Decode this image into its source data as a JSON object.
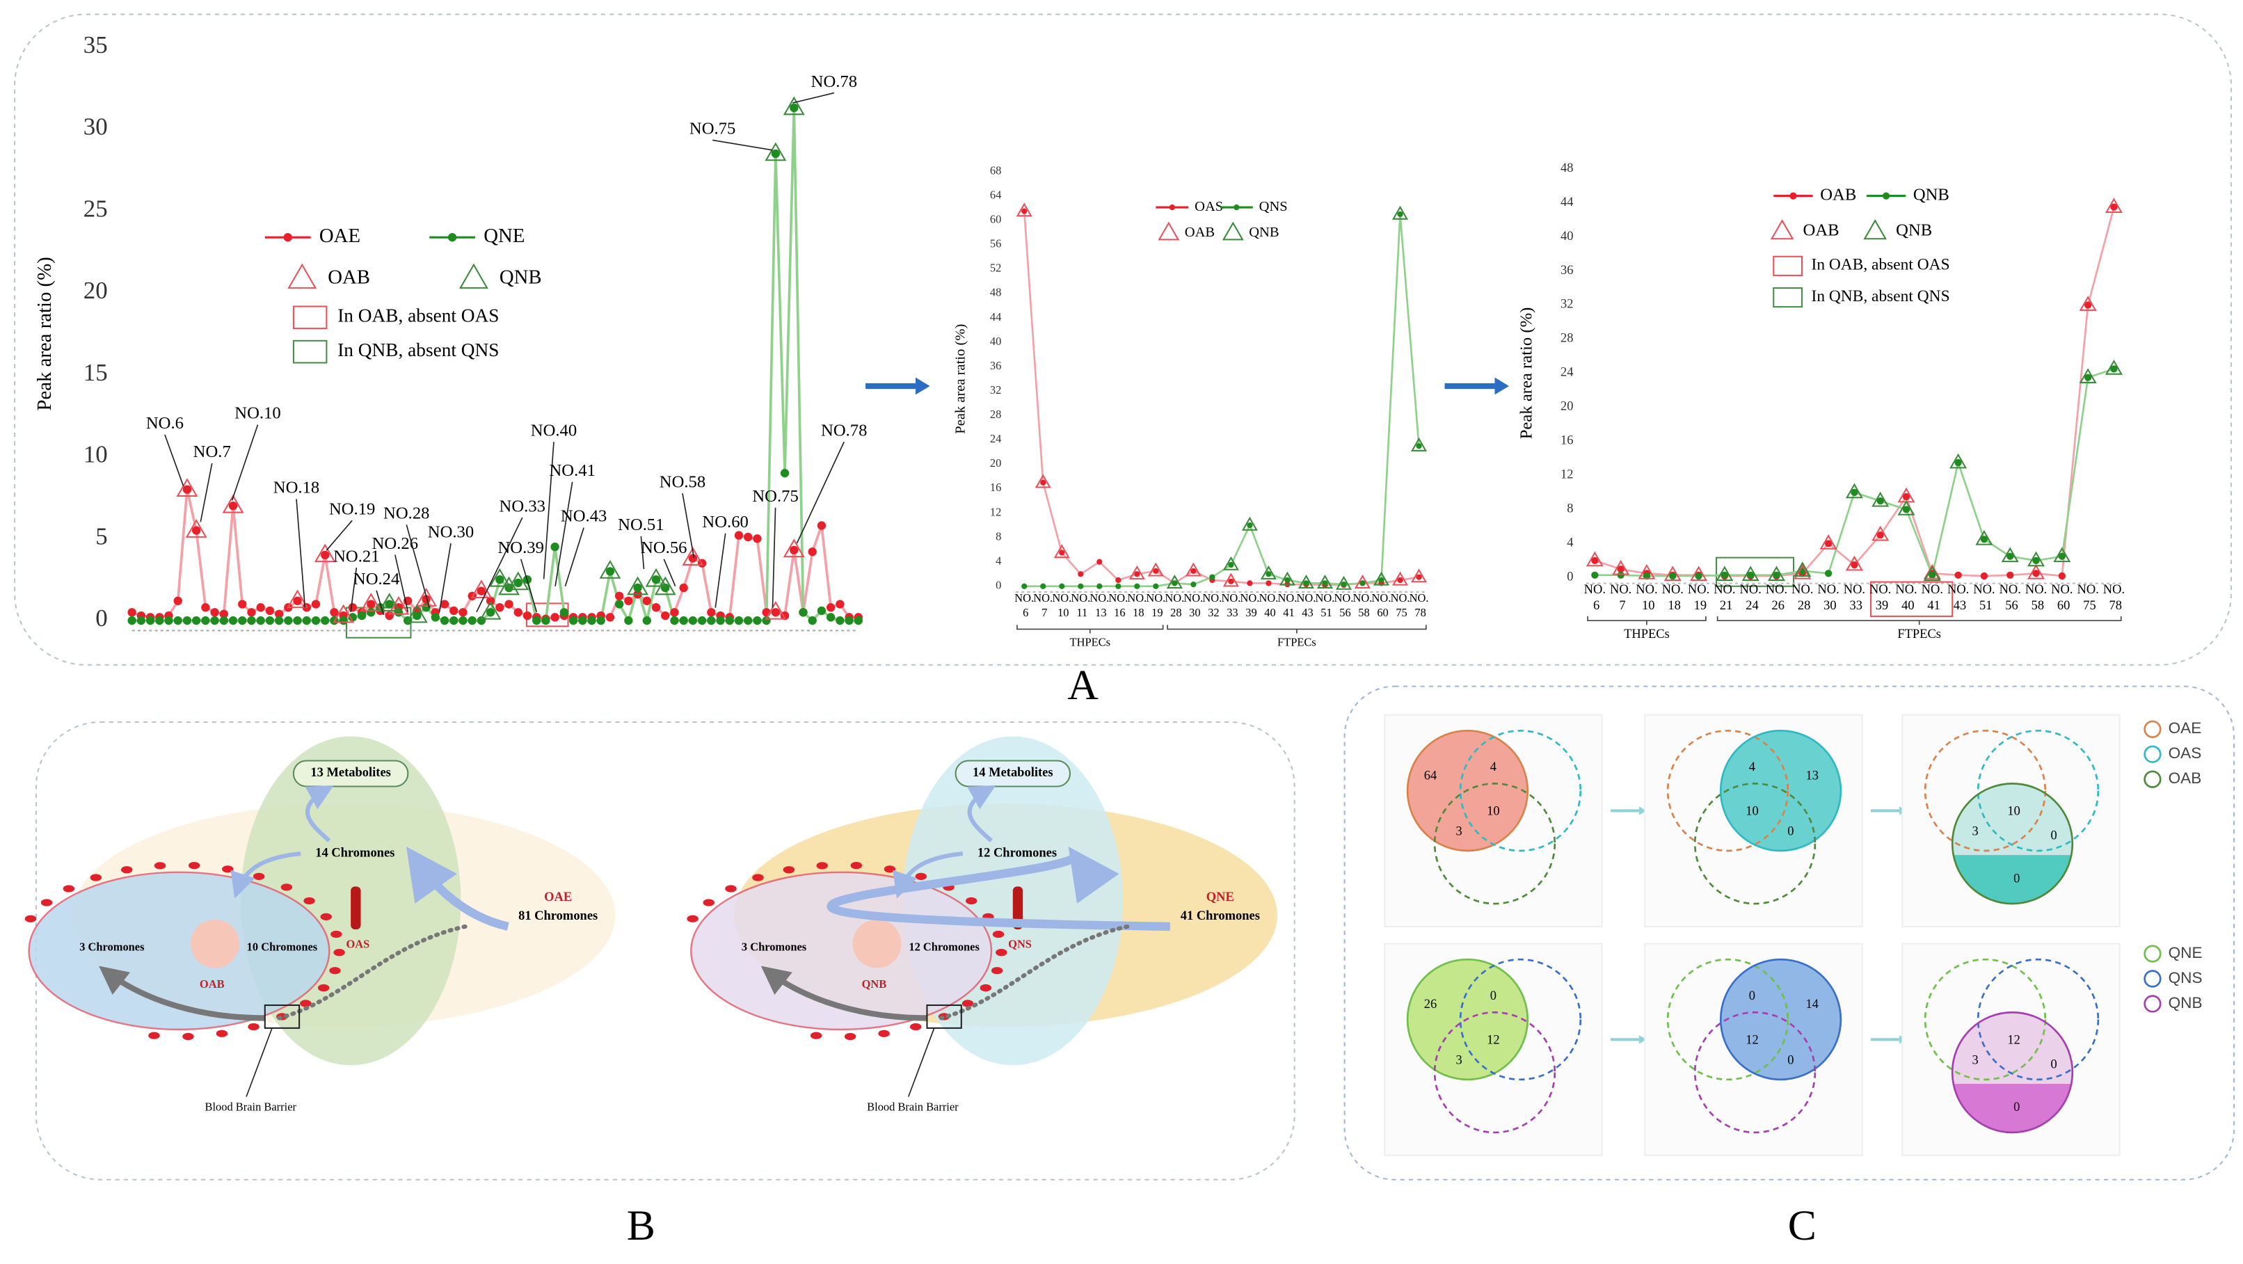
{
  "panel_labels": [
    "A",
    "B",
    "C"
  ],
  "chart_data": [
    {
      "type": "line",
      "ylabel": "Peak area ratio (%)",
      "ylim": [
        0,
        35
      ],
      "yticks": [
        0,
        5,
        10,
        15,
        20,
        25,
        30,
        35
      ],
      "series": [
        {
          "name": "OAE",
          "color": "#e8202a",
          "line_color": "#f4a0a8",
          "marker": "dot",
          "line": true,
          "values": [
            0.5,
            0.3,
            0.2,
            0.2,
            0.3,
            1.2,
            8,
            5.5,
            0.8,
            0.5,
            0.4,
            7,
            1,
            0.5,
            0.8,
            0.6,
            0.4,
            0.8,
            1.2,
            0.8,
            1,
            4,
            0.5,
            0.3,
            0.8,
            0.5,
            1,
            0.6,
            0.3,
            0.8,
            1.2,
            0.6,
            1.3,
            0.5,
            1,
            0.6,
            0.5,
            1.5,
            1.8,
            1.2,
            0.8,
            1,
            0.5,
            0.3,
            0.2,
            0.1,
            0.2,
            0.3,
            0.2,
            0.2,
            0.2,
            0.3,
            0.2,
            1.5,
            1.2,
            1.6,
            1.2,
            0.8,
            0.3,
            0.5,
            2,
            3.8,
            3.5,
            0.5,
            0.3,
            0.2,
            5.2,
            5.1,
            5,
            0.5,
            0.5,
            0.3,
            4.3,
            0.5,
            4.2,
            5.8,
            0.8,
            1,
            0.2,
            0.2
          ]
        },
        {
          "name": "QNE",
          "color": "#1e8c1e",
          "line_color": "#8fd18a",
          "marker": "dot",
          "line": true,
          "values": [
            0,
            0,
            0,
            0,
            0,
            0,
            0,
            0,
            0,
            0,
            0,
            0,
            0,
            0,
            0,
            0,
            0,
            0,
            0,
            0,
            0,
            0,
            0,
            0,
            0.2,
            0.3,
            0.5,
            0.8,
            1,
            0.5,
            0,
            0.3,
            0.8,
            0.2,
            0,
            0,
            0,
            0,
            0,
            0.5,
            2.5,
            2,
            2.3,
            2.5,
            0,
            0,
            4.5,
            0.5,
            0,
            0,
            0,
            0,
            3,
            1,
            0,
            2,
            0,
            2.5,
            2,
            0,
            0,
            0,
            0,
            0,
            0,
            0,
            0,
            0,
            0,
            0,
            28.5,
            9,
            31.3,
            0.5,
            0,
            0.6,
            0.2,
            0,
            0,
            0
          ]
        },
        {
          "name": "OAB",
          "color": "#e8505a",
          "marker": "triangle",
          "line": false,
          "values": [
            null,
            null,
            null,
            null,
            null,
            null,
            8,
            5.5,
            null,
            null,
            null,
            7,
            null,
            null,
            null,
            null,
            null,
            null,
            1.2,
            null,
            null,
            4,
            null,
            0.3,
            null,
            null,
            1,
            null,
            null,
            0.8,
            null,
            null,
            1.3,
            null,
            null,
            null,
            null,
            null,
            1.8,
            null,
            null,
            null,
            null,
            null,
            null,
            null,
            null,
            null,
            null,
            null,
            null,
            null,
            null,
            null,
            null,
            null,
            null,
            null,
            null,
            null,
            null,
            3.8,
            null,
            null,
            null,
            null,
            null,
            null,
            null,
            null,
            0.5,
            null,
            4.3,
            null,
            null,
            null,
            null,
            null,
            null,
            null
          ]
        },
        {
          "name": "QNB",
          "color": "#3a8a3a",
          "marker": "triangle",
          "line": false,
          "values": [
            null,
            null,
            null,
            null,
            null,
            null,
            null,
            null,
            null,
            null,
            null,
            null,
            null,
            null,
            null,
            null,
            null,
            null,
            null,
            null,
            null,
            null,
            null,
            null,
            null,
            null,
            null,
            null,
            1,
            null,
            null,
            0.3,
            null,
            null,
            null,
            null,
            null,
            null,
            null,
            0.5,
            2.5,
            2,
            2.3,
            null,
            null,
            null,
            null,
            null,
            null,
            null,
            null,
            null,
            3,
            null,
            null,
            2,
            null,
            2.5,
            2,
            null,
            null,
            null,
            null,
            null,
            null,
            null,
            null,
            null,
            null,
            null,
            28.5,
            null,
            31.3,
            null,
            null,
            null,
            null,
            null,
            null,
            null
          ]
        }
      ],
      "legend_boxes": [
        {
          "label": "In OAB, absent OAS",
          "color": "#e8505a"
        },
        {
          "label": "In QNB, absent QNS",
          "color": "#4a8a4a"
        }
      ],
      "annotations": [
        "NO.6",
        "NO.7",
        "NO.10",
        "NO.18",
        "NO.19",
        "NO.21",
        "NO.24",
        "NO.26",
        "NO.28",
        "NO.30",
        "NO.33",
        "NO.39",
        "NO.40",
        "NO.41",
        "NO.43",
        "NO.51",
        "NO.56",
        "NO.58",
        "NO.60",
        "NO.75",
        "NO.78",
        "NO.75",
        "NO.78"
      ]
    },
    {
      "type": "line",
      "ylabel": "Peak area ratio (%)",
      "ylim": [
        0,
        68
      ],
      "yticks": [
        0,
        4,
        8,
        12,
        16,
        20,
        24,
        28,
        32,
        36,
        40,
        44,
        48,
        52,
        56,
        60,
        64,
        68
      ],
      "categories": [
        "NO. 6",
        "NO. 7",
        "NO. 10",
        "NO. 11",
        "NO. 13",
        "NO. 16",
        "NO. 18",
        "NO. 19",
        "NO. 28",
        "NO. 30",
        "NO. 32",
        "NO. 33",
        "NO. 39",
        "NO. 40",
        "NO. 41",
        "NO. 43",
        "NO. 51",
        "NO. 56",
        "NO. 58",
        "NO. 60",
        "NO. 75",
        "NO. 78"
      ],
      "groups": [
        "THPECs",
        "FTPECs"
      ],
      "series": [
        {
          "name": "OAS",
          "color": "#e8202a",
          "line_color": "#f4a0a8",
          "marker": "dot",
          "line": true,
          "values": [
            61.5,
            17,
            5.5,
            2,
            4,
            1,
            2,
            2.5,
            0.5,
            2.5,
            1,
            0.8,
            0.5,
            0.5,
            0.3,
            0.3,
            0.2,
            0.2,
            0.5,
            0.5,
            1,
            1.5
          ]
        },
        {
          "name": "QNS",
          "color": "#1e8c1e",
          "line_color": "#8fd18a",
          "marker": "dot",
          "line": true,
          "values": [
            0,
            0,
            0,
            0,
            0,
            0,
            0,
            0,
            0.5,
            0.3,
            1.5,
            3.5,
            10,
            2,
            1,
            0.5,
            0.5,
            0.3,
            0.5,
            1,
            61,
            23
          ]
        },
        {
          "name": "OAB",
          "color": "#e8505a",
          "marker": "triangle",
          "line": false,
          "values": [
            61.5,
            17,
            5.5,
            null,
            null,
            null,
            2,
            2.5,
            null,
            2.5,
            null,
            0.8,
            null,
            null,
            null,
            null,
            null,
            null,
            0.5,
            null,
            1,
            1.5
          ]
        },
        {
          "name": "QNB",
          "color": "#3a8a3a",
          "marker": "triangle",
          "line": false,
          "values": [
            null,
            null,
            null,
            null,
            null,
            null,
            null,
            null,
            0.5,
            null,
            null,
            3.5,
            10,
            2,
            1,
            0.5,
            0.5,
            0.3,
            null,
            1,
            61,
            23
          ]
        }
      ]
    },
    {
      "type": "line",
      "ylabel": "Peak area ratio (%)",
      "ylim": [
        0,
        48
      ],
      "yticks": [
        0,
        4,
        8,
        12,
        16,
        20,
        24,
        28,
        32,
        36,
        40,
        44,
        48
      ],
      "categories": [
        "NO. 6",
        "NO. 7",
        "NO. 10",
        "NO. 18",
        "NO. 19",
        "NO. 21",
        "NO. 24",
        "NO. 26",
        "NO. 28",
        "NO. 30",
        "NO. 33",
        "NO. 39",
        "NO. 40",
        "NO. 41",
        "NO. 43",
        "NO. 51",
        "NO. 56",
        "NO. 58",
        "NO. 60",
        "NO. 75",
        "NO. 78"
      ],
      "groups": [
        "THPECs",
        "FTPECs"
      ],
      "series": [
        {
          "name": "OAB",
          "color": "#e8202a",
          "line_color": "#f4a0a8",
          "marker": "dot",
          "line": true,
          "values": [
            2,
            1,
            0.5,
            0.3,
            0.3,
            0.2,
            0.2,
            0.2,
            0.5,
            4,
            1.5,
            5,
            9.5,
            0.5,
            0.3,
            0.2,
            0.3,
            0.5,
            0.2,
            32,
            43.5
          ]
        },
        {
          "name": "QNB",
          "color": "#1e8c1e",
          "line_color": "#8fd18a",
          "marker": "dot",
          "line": true,
          "values": [
            0.3,
            0.3,
            0.2,
            0.2,
            0.2,
            0.3,
            0.3,
            0.3,
            0.8,
            0.5,
            10,
            9,
            8,
            0.3,
            13.5,
            4.5,
            2.5,
            2,
            2.5,
            23.5,
            24.5
          ]
        },
        {
          "name": "OAB",
          "color": "#e8505a",
          "marker": "triangle",
          "line": false,
          "values": [
            2,
            1,
            0.5,
            0.3,
            0.3,
            null,
            null,
            null,
            0.5,
            4,
            1.5,
            5,
            9.5,
            0.5,
            null,
            null,
            null,
            0.5,
            null,
            32,
            43.5
          ]
        },
        {
          "name": "QNB",
          "color": "#3a8a3a",
          "marker": "triangle",
          "line": false,
          "values": [
            null,
            null,
            null,
            null,
            null,
            0.3,
            0.3,
            0.3,
            0.8,
            null,
            10,
            9,
            8,
            0.3,
            13.5,
            4.5,
            2.5,
            2,
            2.5,
            23.5,
            24.5
          ]
        }
      ],
      "legend_boxes": [
        {
          "label": "In OAB, absent OAS",
          "color": "#e8505a"
        },
        {
          "label": "In QNB, absent QNS",
          "color": "#4a8a4a"
        }
      ]
    }
  ],
  "diagram": {
    "left": {
      "metabolites": "13 Metabolites",
      "absorbed": "14 Chromones",
      "extract": "OAE",
      "extract_count": "81 Chromones",
      "brain_only": "3 Chromones",
      "shared": "10 Chromones",
      "brain": "OAB",
      "serum": "OAS",
      "barrier": "Blood Brain Barrier"
    },
    "right": {
      "metabolites": "14 Metabolites",
      "absorbed": "12 Chromones",
      "extract": "QNE",
      "extract_count": "41 Chromones",
      "brain_only": "3 Chromones",
      "shared": "12 Chromones",
      "brain": "QNB",
      "serum": "QNS",
      "barrier": "Blood Brain Barrier"
    }
  },
  "venn": {
    "top": {
      "legend": [
        {
          "name": "OAE",
          "color": "#d9824a"
        },
        {
          "name": "OAS",
          "color": "#2fb9c2"
        },
        {
          "name": "OAB",
          "color": "#4f8a3a"
        }
      ],
      "fills": [
        "#f08a78",
        "#3cc6c6",
        "#3cc6b8"
      ],
      "diagrams": [
        [
          64,
          4,
          10,
          3
        ],
        [
          4,
          13,
          10,
          0
        ],
        [
          10,
          3,
          0,
          0
        ]
      ]
    },
    "bottom": {
      "legend": [
        {
          "name": "QNE",
          "color": "#6fbf4a"
        },
        {
          "name": "QNS",
          "color": "#3a6fc9"
        },
        {
          "name": "QNB",
          "color": "#a53fb0"
        }
      ],
      "fills": [
        "#b5e36a",
        "#6fa3e0",
        "#d468d0"
      ],
      "diagrams": [
        [
          26,
          0,
          12,
          3
        ],
        [
          0,
          14,
          12,
          0
        ],
        [
          12,
          3,
          0,
          0
        ]
      ]
    }
  }
}
